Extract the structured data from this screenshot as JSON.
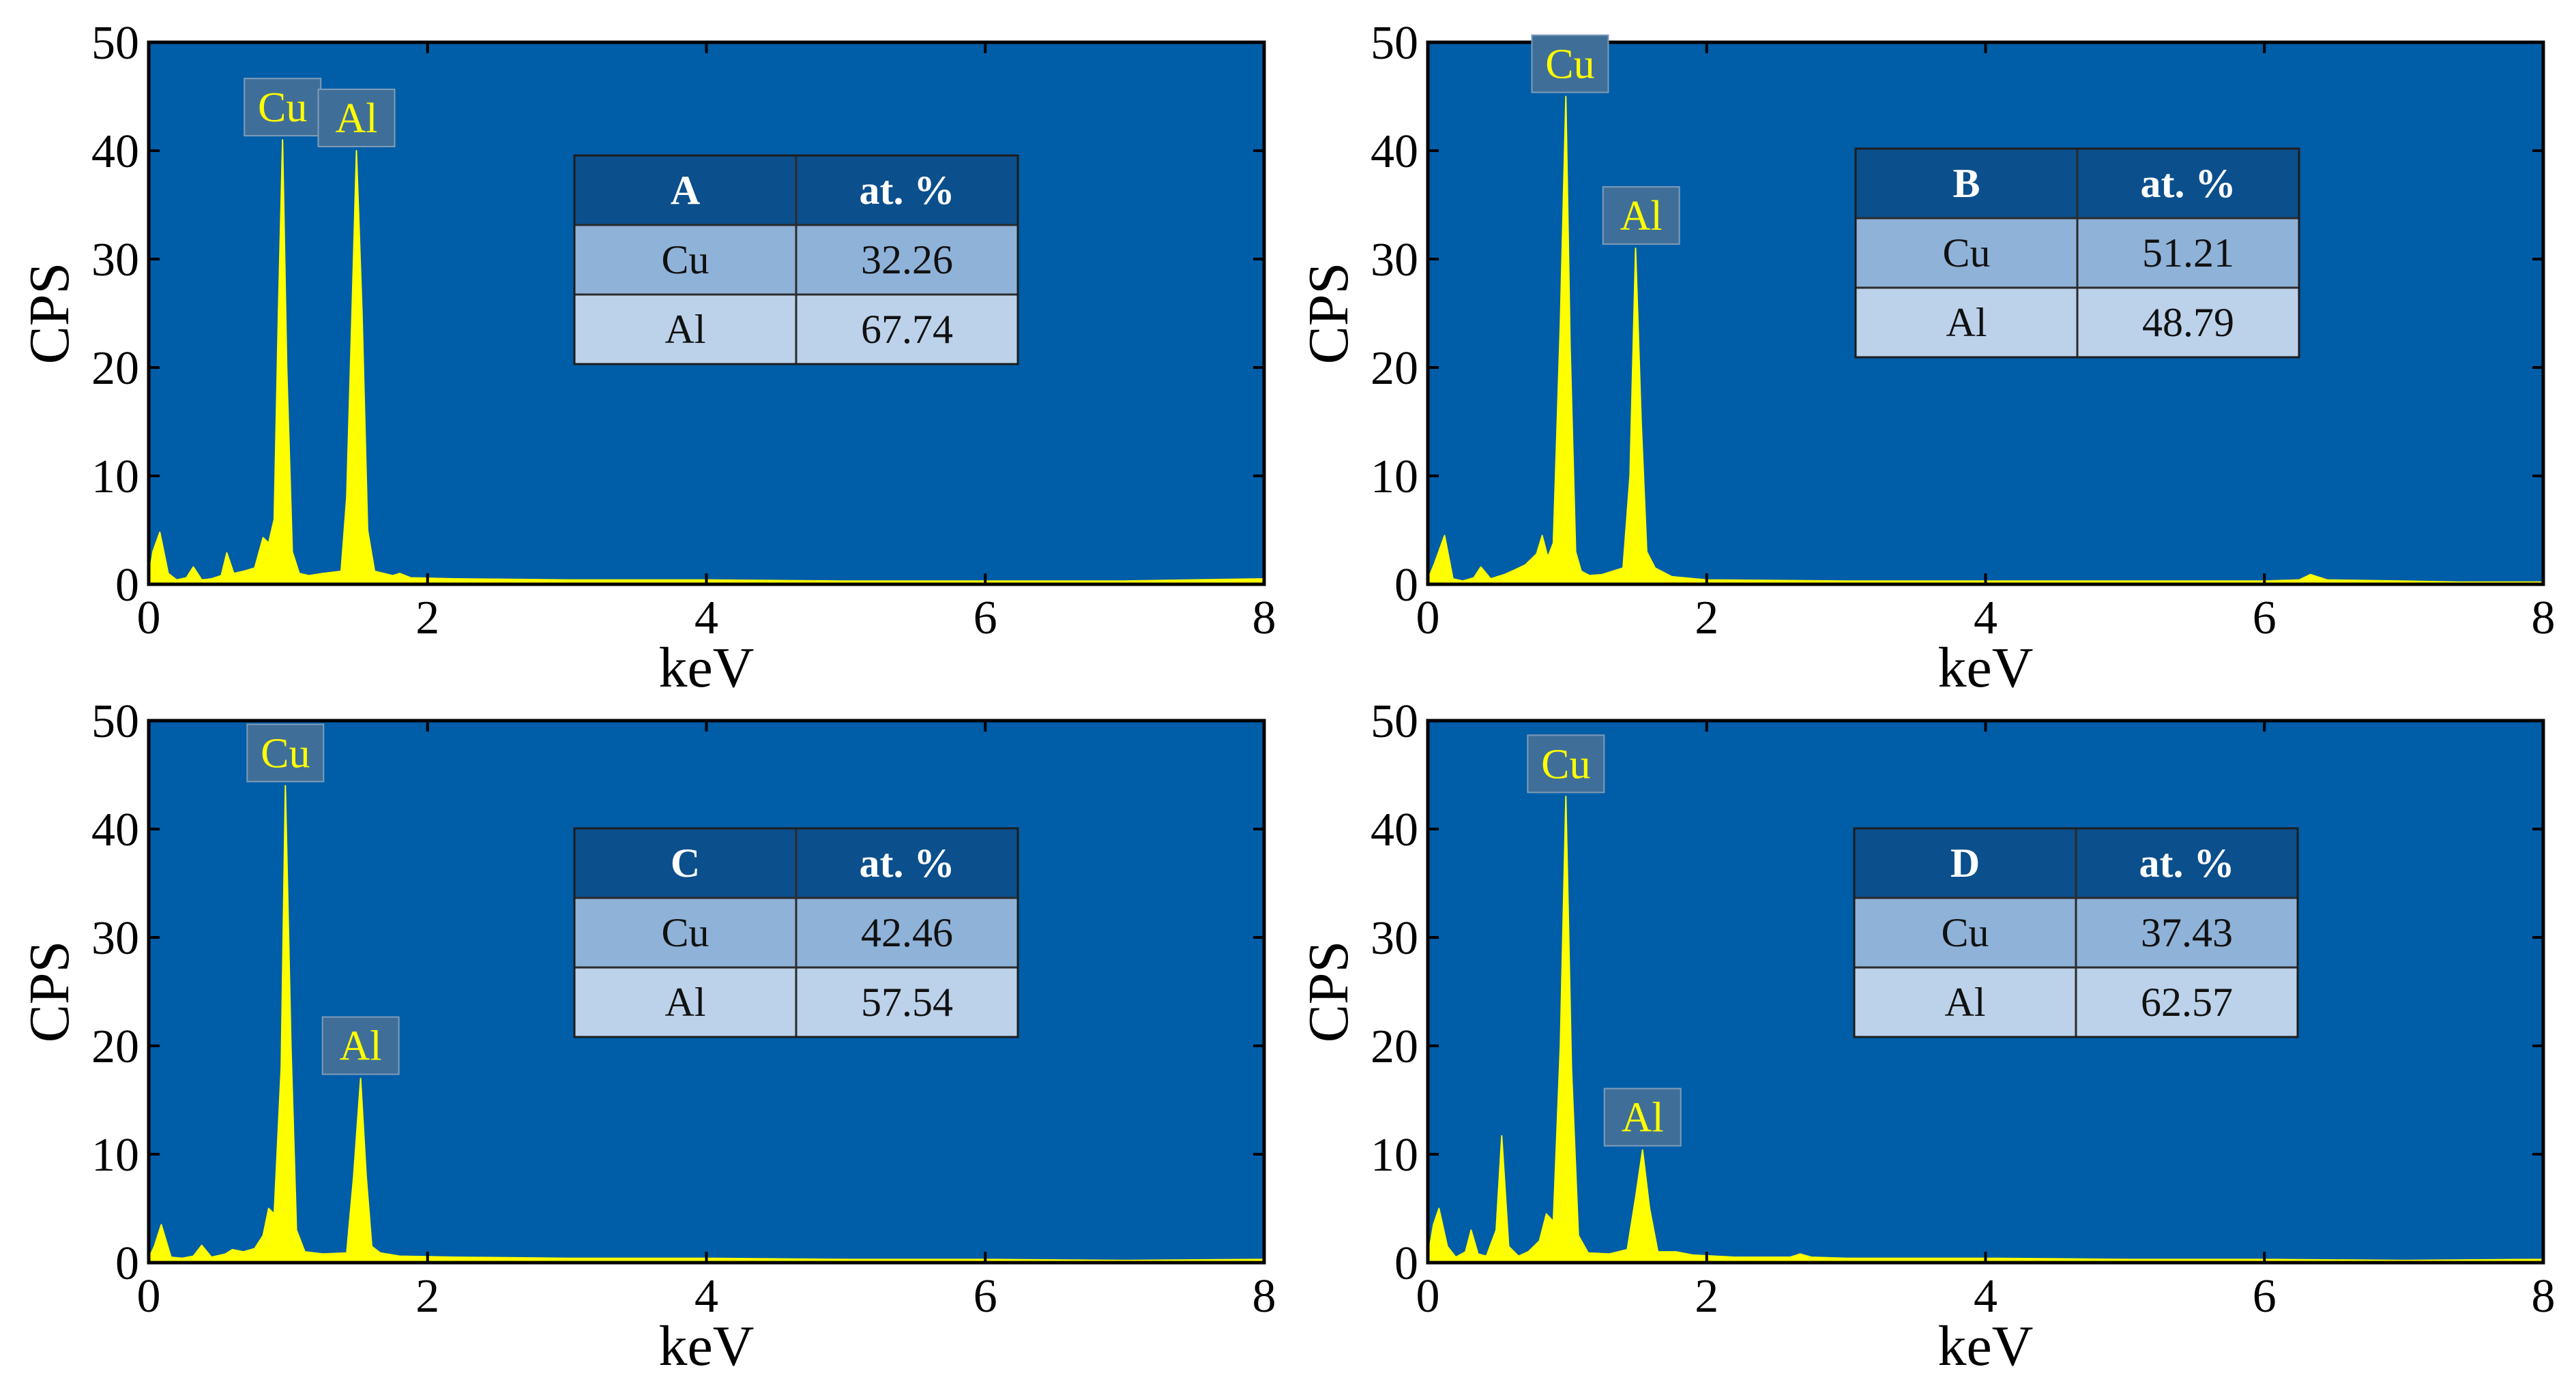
{
  "colors": {
    "plot_background": "#005da8",
    "spectrum_fill": "#ffff00",
    "peak_label_box": "#3f6f98",
    "table_header": "#0b4f8c",
    "table_row_1": "#8fb2d8",
    "table_row_2": "#bcd2ea"
  },
  "chart_data": [
    {
      "type": "area",
      "xlabel": "keV",
      "ylabel": "CPS",
      "xlim": [
        0,
        8
      ],
      "ylim": [
        0,
        50
      ],
      "xticks": [
        "0",
        "2",
        "4",
        "6",
        "8"
      ],
      "yticks": [
        "0",
        "10",
        "20",
        "30",
        "40",
        "50"
      ],
      "grid": false,
      "series": [
        {
          "x": [
            0,
            0.03,
            0.08,
            0.14,
            0.2,
            0.27,
            0.32,
            0.38,
            0.45,
            0.52,
            0.56,
            0.61,
            0.68,
            0.76,
            0.82,
            0.86,
            0.9,
            0.93,
            0.96,
            0.99,
            1.03,
            1.08,
            1.15,
            1.25,
            1.38,
            1.42,
            1.46,
            1.49,
            1.53,
            1.57,
            1.62,
            1.75,
            1.8,
            1.88,
            2.2,
            3,
            4,
            5,
            6,
            7,
            8
          ],
          "y": [
            0.5,
            3.0,
            4.8,
            1.0,
            0.4,
            0.6,
            1.6,
            0.4,
            0.5,
            0.8,
            2.9,
            1.0,
            1.2,
            1.5,
            4.3,
            3.8,
            6.0,
            25,
            41,
            20,
            3.0,
            1.0,
            0.8,
            1.0,
            1.2,
            8.0,
            26,
            40,
            25,
            5.0,
            1.2,
            0.8,
            1.0,
            0.6,
            0.5,
            0.4,
            0.4,
            0.3,
            0.3,
            0.3,
            0.5
          ]
        }
      ],
      "peak_labels": [
        {
          "text": "Cu",
          "x": 0.96,
          "y": 41
        },
        {
          "text": "Al",
          "x": 1.49,
          "y": 40
        }
      ],
      "table": {
        "header": [
          "A",
          "at. %"
        ],
        "rows": [
          [
            "Cu",
            "32.26"
          ],
          [
            "Al",
            "67.74"
          ]
        ]
      }
    },
    {
      "type": "area",
      "xlabel": "keV",
      "ylabel": "CPS",
      "xlim": [
        0,
        8
      ],
      "ylim": [
        0,
        50
      ],
      "xticks": [
        "0",
        "2",
        "4",
        "6",
        "8"
      ],
      "yticks": [
        "0",
        "10",
        "20",
        "30",
        "40",
        "50"
      ],
      "grid": false,
      "series": [
        {
          "x": [
            0,
            0.05,
            0.12,
            0.18,
            0.25,
            0.33,
            0.38,
            0.45,
            0.55,
            0.62,
            0.7,
            0.78,
            0.82,
            0.86,
            0.9,
            0.95,
            0.99,
            1.02,
            1.06,
            1.1,
            1.16,
            1.25,
            1.4,
            1.45,
            1.49,
            1.53,
            1.57,
            1.63,
            1.75,
            2,
            3,
            4,
            5,
            6,
            6.25,
            6.33,
            6.45,
            7,
            7.4,
            8
          ],
          "y": [
            0.4,
            2.0,
            4.5,
            0.5,
            0.3,
            0.6,
            1.6,
            0.5,
            0.9,
            1.3,
            1.8,
            2.8,
            4.5,
            2.5,
            3.8,
            24,
            45,
            22,
            3.0,
            1.2,
            0.8,
            0.9,
            1.5,
            10,
            31,
            15,
            3.0,
            1.5,
            0.7,
            0.4,
            0.3,
            0.3,
            0.3,
            0.3,
            0.4,
            0.9,
            0.4,
            0.3,
            0.2,
            0.2
          ]
        }
      ],
      "peak_labels": [
        {
          "text": "Cu",
          "x": 1.02,
          "y": 45
        },
        {
          "text": "Al",
          "x": 1.53,
          "y": 31
        }
      ],
      "table": {
        "header": [
          "B",
          "at. %"
        ],
        "rows": [
          [
            "Cu",
            "51.21"
          ],
          [
            "Al",
            "48.79"
          ]
        ]
      }
    },
    {
      "type": "area",
      "xlabel": "keV",
      "ylabel": "CPS",
      "xlim": [
        0,
        8
      ],
      "ylim": [
        0,
        50
      ],
      "xticks": [
        "0",
        "2",
        "4",
        "6",
        "8"
      ],
      "yticks": [
        "0",
        "10",
        "20",
        "30",
        "40",
        "50"
      ],
      "grid": false,
      "series": [
        {
          "x": [
            0,
            0.04,
            0.09,
            0.16,
            0.24,
            0.32,
            0.38,
            0.45,
            0.55,
            0.6,
            0.68,
            0.76,
            0.82,
            0.86,
            0.9,
            0.95,
            0.98,
            1.02,
            1.06,
            1.12,
            1.25,
            1.42,
            1.47,
            1.52,
            1.56,
            1.6,
            1.66,
            1.8,
            2.2,
            3,
            4,
            5,
            6,
            7,
            8
          ],
          "y": [
            0.4,
            1.5,
            3.5,
            0.5,
            0.4,
            0.6,
            1.6,
            0.5,
            0.8,
            1.2,
            1.0,
            1.3,
            2.5,
            5.0,
            4.5,
            18,
            44,
            20,
            3.0,
            1.0,
            0.8,
            0.9,
            8.0,
            17,
            8.0,
            1.5,
            0.9,
            0.6,
            0.5,
            0.4,
            0.4,
            0.3,
            0.3,
            0.2,
            0.3
          ]
        }
      ],
      "peak_labels": [
        {
          "text": "Cu",
          "x": 0.98,
          "y": 44
        },
        {
          "text": "Al",
          "x": 1.52,
          "y": 17
        }
      ],
      "table": {
        "header": [
          "C",
          "at. %"
        ],
        "rows": [
          [
            "Cu",
            "42.46"
          ],
          [
            "Al",
            "57.54"
          ]
        ]
      }
    },
    {
      "type": "area",
      "xlabel": "keV",
      "ylabel": "CPS",
      "xlim": [
        0,
        8
      ],
      "ylim": [
        0,
        50
      ],
      "xticks": [
        "0",
        "2",
        "4",
        "6",
        "8"
      ],
      "yticks": [
        "0",
        "10",
        "20",
        "30",
        "40",
        "50"
      ],
      "grid": false,
      "series": [
        {
          "x": [
            0,
            0.04,
            0.08,
            0.14,
            0.2,
            0.27,
            0.31,
            0.36,
            0.42,
            0.49,
            0.53,
            0.58,
            0.65,
            0.72,
            0.8,
            0.85,
            0.9,
            0.95,
            0.99,
            1.03,
            1.08,
            1.15,
            1.3,
            1.43,
            1.49,
            1.54,
            1.59,
            1.65,
            1.78,
            1.9,
            2.2,
            2.6,
            2.67,
            2.75,
            3,
            4,
            5,
            6,
            7,
            8
          ],
          "y": [
            0.4,
            3.5,
            5.0,
            1.5,
            0.5,
            1.0,
            3.0,
            0.8,
            0.6,
            3.0,
            11.7,
            1.5,
            0.6,
            1.0,
            2.0,
            4.5,
            3.8,
            20,
            43,
            18,
            2.5,
            0.9,
            0.8,
            1.2,
            6.0,
            10.4,
            5.0,
            1.0,
            1.0,
            0.7,
            0.5,
            0.5,
            0.8,
            0.5,
            0.4,
            0.4,
            0.3,
            0.3,
            0.2,
            0.3
          ]
        }
      ],
      "peak_labels": [
        {
          "text": "Cu",
          "x": 0.99,
          "y": 43
        },
        {
          "text": "Al",
          "x": 1.54,
          "y": 10.4
        }
      ],
      "table": {
        "header": [
          "D",
          "at. %"
        ],
        "rows": [
          [
            "Cu",
            "37.43"
          ],
          [
            "Al",
            "62.57"
          ]
        ]
      }
    }
  ]
}
